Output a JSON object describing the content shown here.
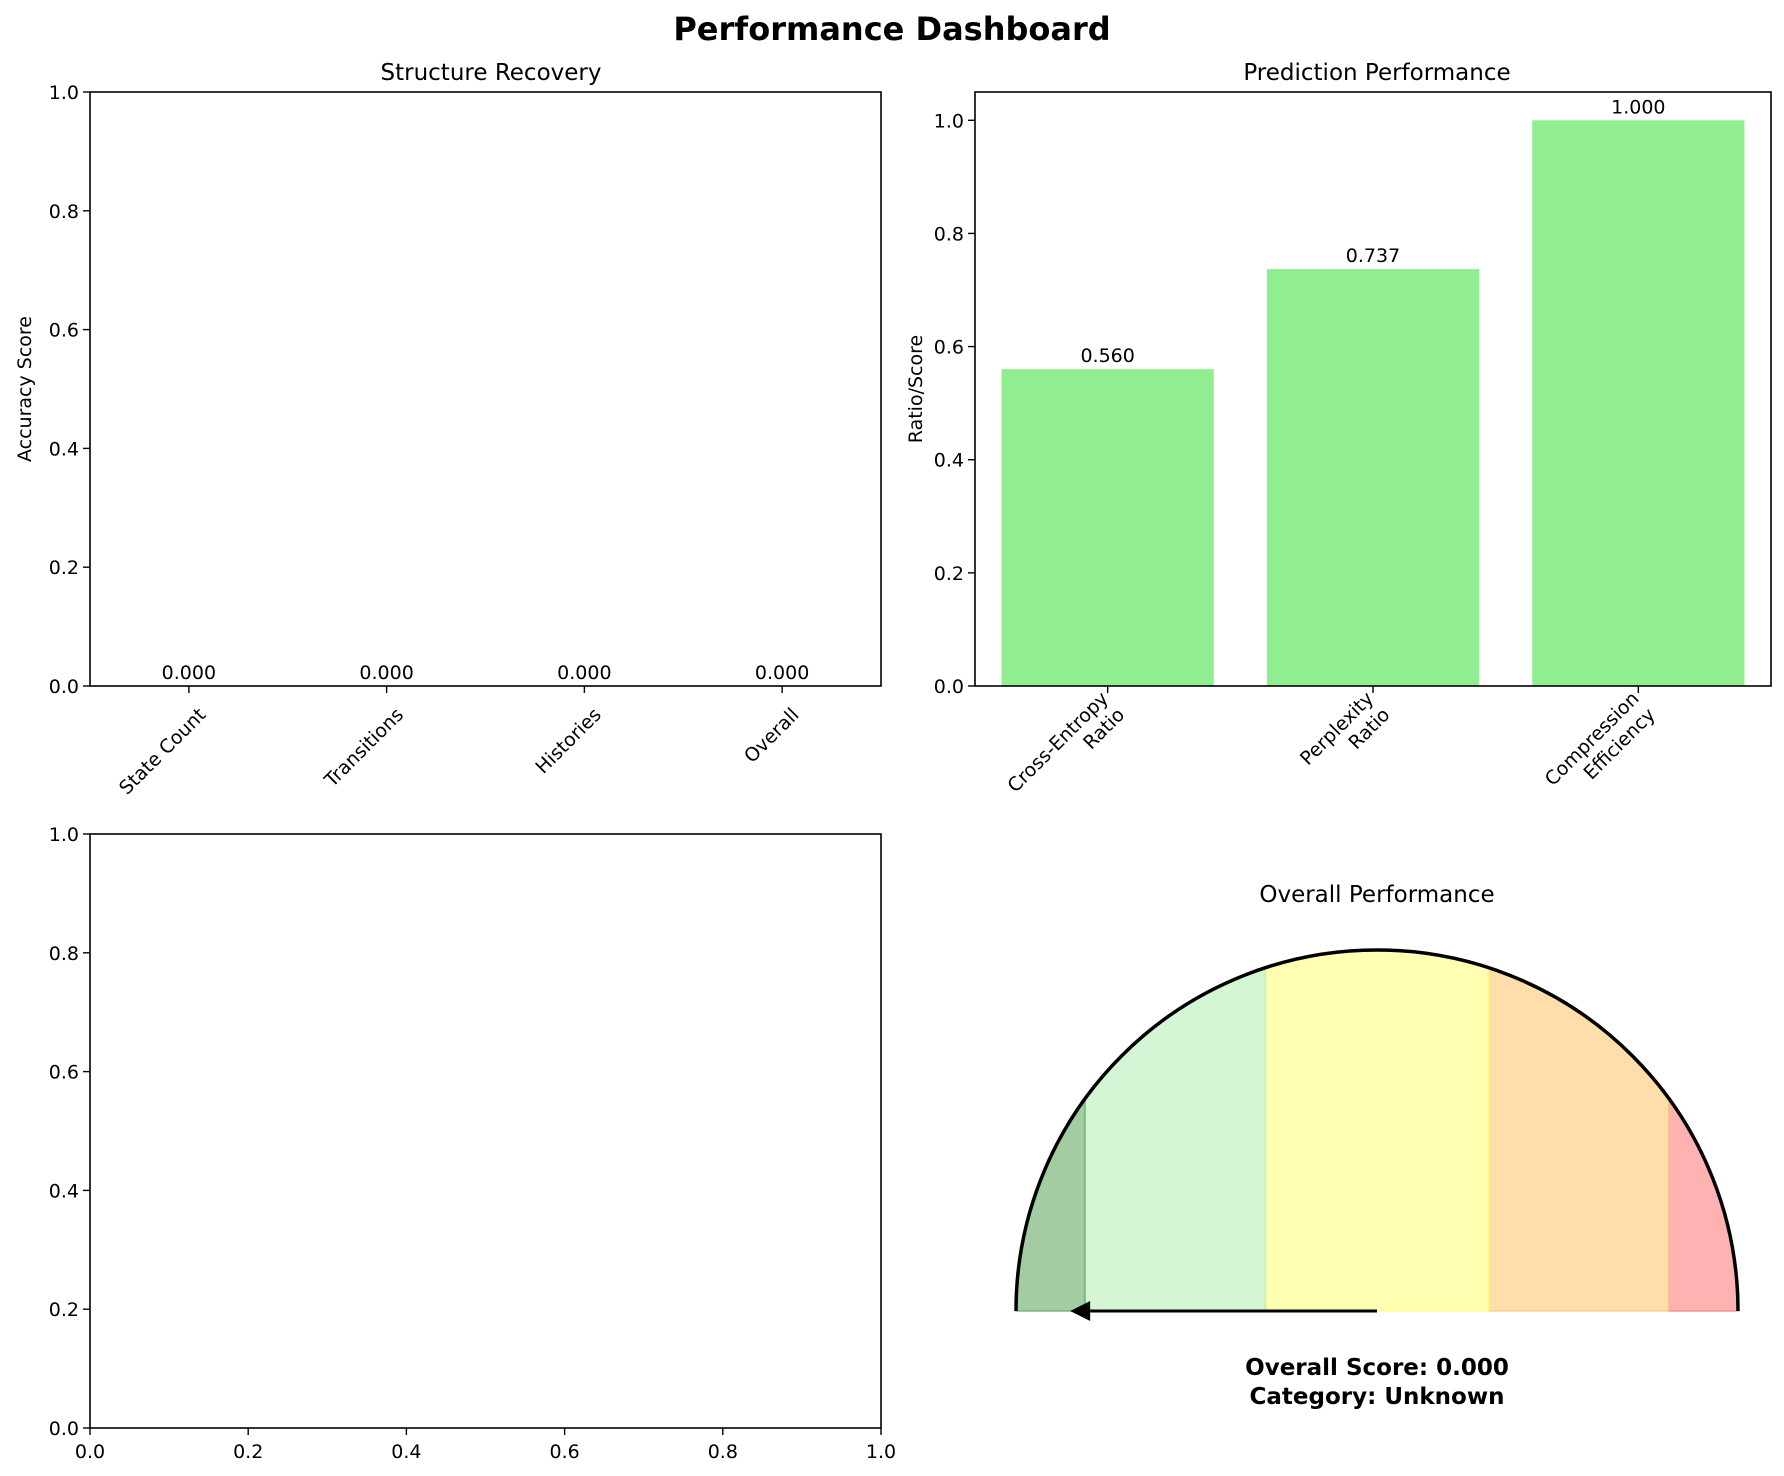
{
  "suptitle": "Performance Dashboard",
  "chart_data": [
    {
      "type": "bar",
      "title": "Structure Recovery",
      "ylabel": "Accuracy Score",
      "categories": [
        "State Count",
        "Transitions",
        "Histories",
        "Overall"
      ],
      "values": [
        0.0,
        0.0,
        0.0,
        0.0
      ],
      "value_labels": [
        "0.000",
        "0.000",
        "0.000",
        "0.000"
      ],
      "ylim": [
        0,
        1
      ],
      "yticks": [
        "0.0",
        "0.2",
        "0.4",
        "0.6",
        "0.8",
        "1.0"
      ],
      "grid": false
    },
    {
      "type": "bar",
      "title": "Prediction Performance",
      "ylabel": "Ratio/Score",
      "categories": [
        "Cross-Entropy\nRatio",
        "Perplexity\nRatio",
        "Compression\nEfficiency"
      ],
      "values": [
        0.56,
        0.737,
        1.0
      ],
      "value_labels": [
        "0.560",
        "0.737",
        "1.000"
      ],
      "ylim": [
        0,
        1.05
      ],
      "yticks": [
        "0.0",
        "0.2",
        "0.4",
        "0.6",
        "0.8",
        "1.0"
      ],
      "bar_color": "#90ee90",
      "grid": false
    },
    {
      "type": "scatter",
      "title": "",
      "xlim": [
        0,
        1
      ],
      "ylim": [
        0,
        1
      ],
      "xticks": [
        "0.0",
        "0.2",
        "0.4",
        "0.6",
        "0.8",
        "1.0"
      ],
      "yticks": [
        "0.0",
        "0.2",
        "0.4",
        "0.6",
        "0.8",
        "1.0"
      ],
      "series": [],
      "grid": false
    },
    {
      "type": "gauge",
      "title": "Overall Performance",
      "score": 0.0,
      "score_text": "Overall Score: 0.000",
      "category_text": "Category: Unknown",
      "zone_boundaries": [
        0,
        0.2,
        0.4,
        0.6,
        0.8,
        1.0
      ],
      "zone_colors": [
        "#ff7f7f",
        "#ffc875",
        "#ffff7f",
        "#b7f0b7",
        "#66aa66"
      ]
    }
  ]
}
